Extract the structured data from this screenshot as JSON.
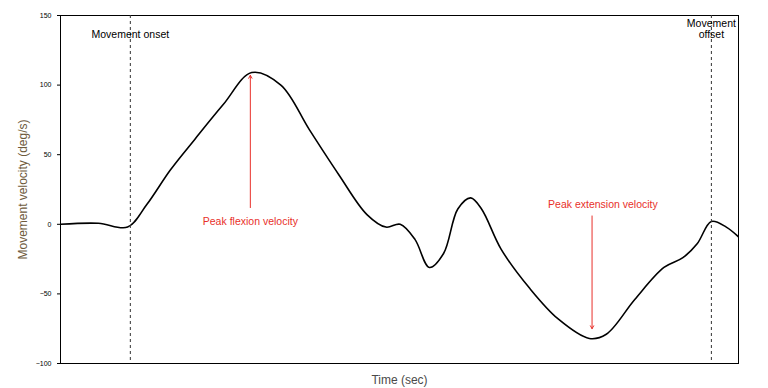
{
  "chart_data": {
    "type": "line",
    "xlabel": "Time (sec)",
    "ylabel": "Movement velocity (deg/s)",
    "x": [
      0,
      0.56,
      0.99,
      1.27,
      1.62,
      1.98,
      2.4,
      2.82,
      3.25,
      3.67,
      4.1,
      4.52,
      4.8,
      5.01,
      5.23,
      5.44,
      5.65,
      5.86,
      6.05,
      6.21,
      6.5,
      6.92,
      7.34,
      7.8,
      8.05,
      8.47,
      8.9,
      9.18,
      9.39,
      9.6,
      9.82,
      10
    ],
    "series": [
      {
        "name": "Movement velocity",
        "color": "#000000",
        "line_style": "solid",
        "values": [
          0,
          0.7,
          -2,
          14,
          39,
          61,
          86,
          109,
          100,
          68,
          36,
          7,
          -2,
          0,
          -11,
          -31,
          -21,
          11,
          19,
          11,
          -18,
          -46,
          -68,
          -82,
          -79,
          -54,
          -31,
          -24,
          -14,
          2,
          -2,
          -9
        ]
      }
    ],
    "xlim": [
      0,
      10
    ],
    "ylim": [
      -100,
      150
    ],
    "yticks": [
      -100,
      -50,
      0,
      50,
      100,
      150
    ],
    "tick_labels": "y",
    "grid": false,
    "vlines": [
      {
        "x": 1.03,
        "label": "Movement onset",
        "label_y": 131,
        "line_style": "dashed"
      },
      {
        "x": 9.6,
        "label": "Movement offset",
        "label_y": 131,
        "line_style": "dashed"
      }
    ],
    "annotations": [
      {
        "text": "Peak flexion velocity",
        "x": 2.8,
        "y": 2,
        "color": "#e8302a",
        "arrow_from": [
          2.8,
          12
        ],
        "arrow_to": [
          2.8,
          107
        ]
      },
      {
        "text": "Peak extension velocity",
        "x": 8.0,
        "y": 14,
        "color": "#e8302a",
        "arrow_from": [
          7.84,
          6
        ],
        "arrow_to": [
          7.84,
          -75
        ]
      }
    ]
  }
}
